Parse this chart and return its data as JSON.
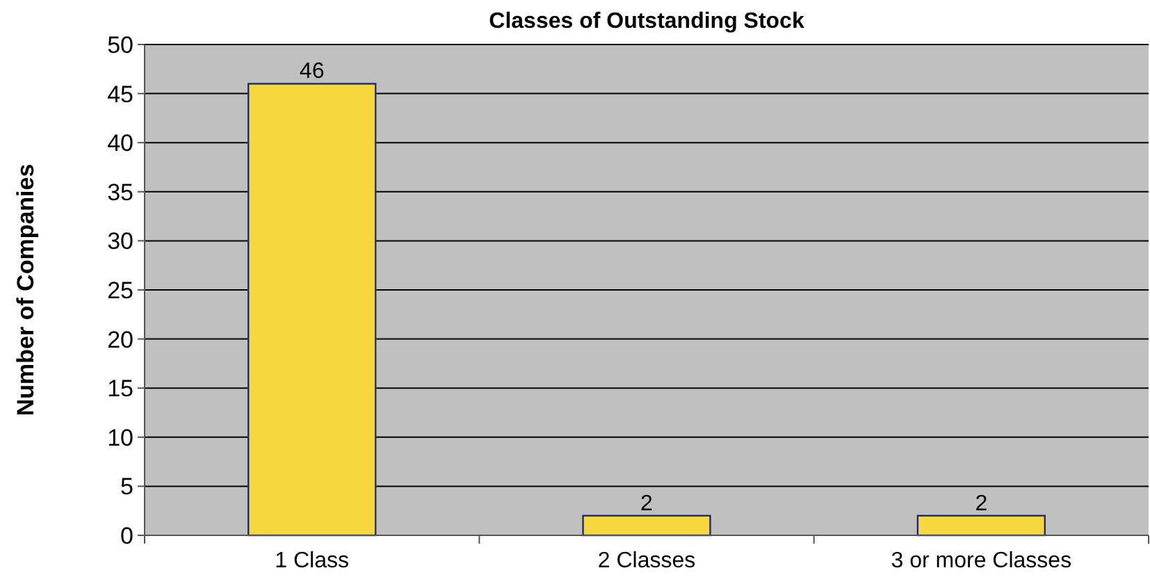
{
  "chart_data": {
    "type": "bar",
    "title": "Classes of Outstanding Stock",
    "ylabel": "Number of Companies",
    "categories": [
      "1 Class",
      "2 Classes",
      "3 or more Classes"
    ],
    "values": [
      46,
      2,
      2
    ],
    "color": "#f5d840",
    "ylim": [
      0,
      50
    ],
    "yticks": [
      0,
      5,
      10,
      15,
      20,
      25,
      30,
      35,
      40,
      45,
      50
    ],
    "grid": "y",
    "data_labels": true
  }
}
